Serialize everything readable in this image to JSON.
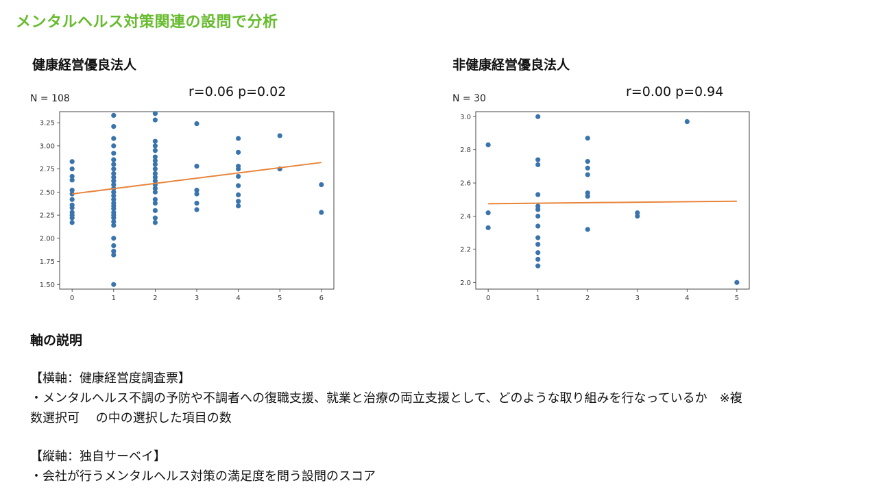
{
  "title": "メンタルヘルス対策関連の設問で分析",
  "chart_data": [
    {
      "type": "scatter",
      "title": "健康経営優良法人",
      "n_label": "N = 108",
      "stats": "r=0.06 p=0.02",
      "xlim": [
        -0.3,
        6.3
      ],
      "ylim": [
        1.45,
        3.37
      ],
      "xticks": [
        0,
        1,
        2,
        3,
        4,
        5,
        6
      ],
      "yticks": [
        1.5,
        1.75,
        2.0,
        2.25,
        2.5,
        2.75,
        3.0,
        3.25
      ],
      "ytick_labels": [
        "1.50",
        "1.75",
        "2.00",
        "2.25",
        "2.50",
        "2.75",
        "3.00",
        "3.25"
      ],
      "point_color": "#3a74ad",
      "line_color": "#e8843a",
      "points": [
        [
          0,
          2.83
        ],
        [
          0,
          2.75
        ],
        [
          0,
          2.67
        ],
        [
          0,
          2.63
        ],
        [
          0,
          2.52
        ],
        [
          0,
          2.48
        ],
        [
          0,
          2.42
        ],
        [
          0,
          2.36
        ],
        [
          0,
          2.33
        ],
        [
          0,
          2.28
        ],
        [
          0,
          2.25
        ],
        [
          0,
          2.22
        ],
        [
          0,
          2.17
        ],
        [
          1,
          3.33
        ],
        [
          1,
          3.21
        ],
        [
          1,
          3.08
        ],
        [
          1,
          3.0
        ],
        [
          1,
          2.92
        ],
        [
          1,
          2.85
        ],
        [
          1,
          2.8
        ],
        [
          1,
          2.75
        ],
        [
          1,
          2.7
        ],
        [
          1,
          2.66
        ],
        [
          1,
          2.62
        ],
        [
          1,
          2.58
        ],
        [
          1,
          2.54
        ],
        [
          1,
          2.5
        ],
        [
          1,
          2.46
        ],
        [
          1,
          2.42
        ],
        [
          1,
          2.38
        ],
        [
          1,
          2.35
        ],
        [
          1,
          2.32
        ],
        [
          1,
          2.28
        ],
        [
          1,
          2.25
        ],
        [
          1,
          2.22
        ],
        [
          1,
          2.18
        ],
        [
          1,
          2.14
        ],
        [
          1,
          2.0
        ],
        [
          1,
          1.92
        ],
        [
          1,
          1.86
        ],
        [
          1,
          1.82
        ],
        [
          1,
          1.5
        ],
        [
          2,
          3.35
        ],
        [
          2,
          3.28
        ],
        [
          2,
          3.05
        ],
        [
          2,
          3.0
        ],
        [
          2,
          2.95
        ],
        [
          2,
          2.88
        ],
        [
          2,
          2.84
        ],
        [
          2,
          2.8
        ],
        [
          2,
          2.75
        ],
        [
          2,
          2.7
        ],
        [
          2,
          2.66
        ],
        [
          2,
          2.62
        ],
        [
          2,
          2.58
        ],
        [
          2,
          2.54
        ],
        [
          2,
          2.5
        ],
        [
          2,
          2.42
        ],
        [
          2,
          2.38
        ],
        [
          2,
          2.3
        ],
        [
          2,
          2.22
        ],
        [
          2,
          2.17
        ],
        [
          3,
          3.24
        ],
        [
          3,
          2.78
        ],
        [
          3,
          2.52
        ],
        [
          3,
          2.48
        ],
        [
          3,
          2.38
        ],
        [
          3,
          2.31
        ],
        [
          4,
          3.08
        ],
        [
          4,
          2.93
        ],
        [
          4,
          2.78
        ],
        [
          4,
          2.75
        ],
        [
          4,
          2.67
        ],
        [
          4,
          2.57
        ],
        [
          4,
          2.47
        ],
        [
          4,
          2.4
        ],
        [
          4,
          2.35
        ],
        [
          5,
          3.11
        ],
        [
          5,
          2.75
        ],
        [
          6,
          2.58
        ],
        [
          6,
          2.28
        ]
      ],
      "fit": {
        "x": [
          0,
          6
        ],
        "y": [
          2.48,
          2.82
        ]
      }
    },
    {
      "type": "scatter",
      "title": "非健康経営優良法人",
      "n_label": "N = 30",
      "stats": "r=0.00 p=0.94",
      "xlim": [
        -0.25,
        5.25
      ],
      "ylim": [
        1.96,
        3.03
      ],
      "xticks": [
        0,
        1,
        2,
        3,
        4,
        5
      ],
      "yticks": [
        2.0,
        2.2,
        2.4,
        2.6,
        2.8,
        3.0
      ],
      "ytick_labels": [
        "2.0",
        "2.2",
        "2.4",
        "2.6",
        "2.8",
        "3.0"
      ],
      "point_color": "#3a74ad",
      "line_color": "#e8843a",
      "points": [
        [
          0,
          2.83
        ],
        [
          0,
          2.42
        ],
        [
          0,
          2.33
        ],
        [
          1,
          3.0
        ],
        [
          1,
          2.74
        ],
        [
          1,
          2.71
        ],
        [
          1,
          2.53
        ],
        [
          1,
          2.46
        ],
        [
          1,
          2.44
        ],
        [
          1,
          2.4
        ],
        [
          1,
          2.34
        ],
        [
          1,
          2.27
        ],
        [
          1,
          2.23
        ],
        [
          1,
          2.18
        ],
        [
          1,
          2.14
        ],
        [
          1,
          2.1
        ],
        [
          2,
          2.87
        ],
        [
          2,
          2.73
        ],
        [
          2,
          2.69
        ],
        [
          2,
          2.65
        ],
        [
          2,
          2.54
        ],
        [
          2,
          2.52
        ],
        [
          2,
          2.32
        ],
        [
          3,
          2.42
        ],
        [
          3,
          2.4
        ],
        [
          4,
          2.97
        ],
        [
          5,
          2.0
        ]
      ],
      "fit": {
        "x": [
          0,
          5
        ],
        "y": [
          2.475,
          2.49
        ]
      }
    }
  ],
  "axis_explanation": {
    "heading": "軸の説明",
    "x_title": "【横軸：健康経営度調査票】",
    "x_line1": "・メンタルヘルス不調の予防や不調者への復職支援、就業と治療の両立支援として、どのような取り組みを行なっているか　※複",
    "x_line2": "数選択可　 の中の選択した項目の数",
    "y_title": "【縦軸：独自サーベイ】",
    "y_line1": "・会社が行うメンタルヘルス対策の満足度を問う設問のスコア"
  }
}
